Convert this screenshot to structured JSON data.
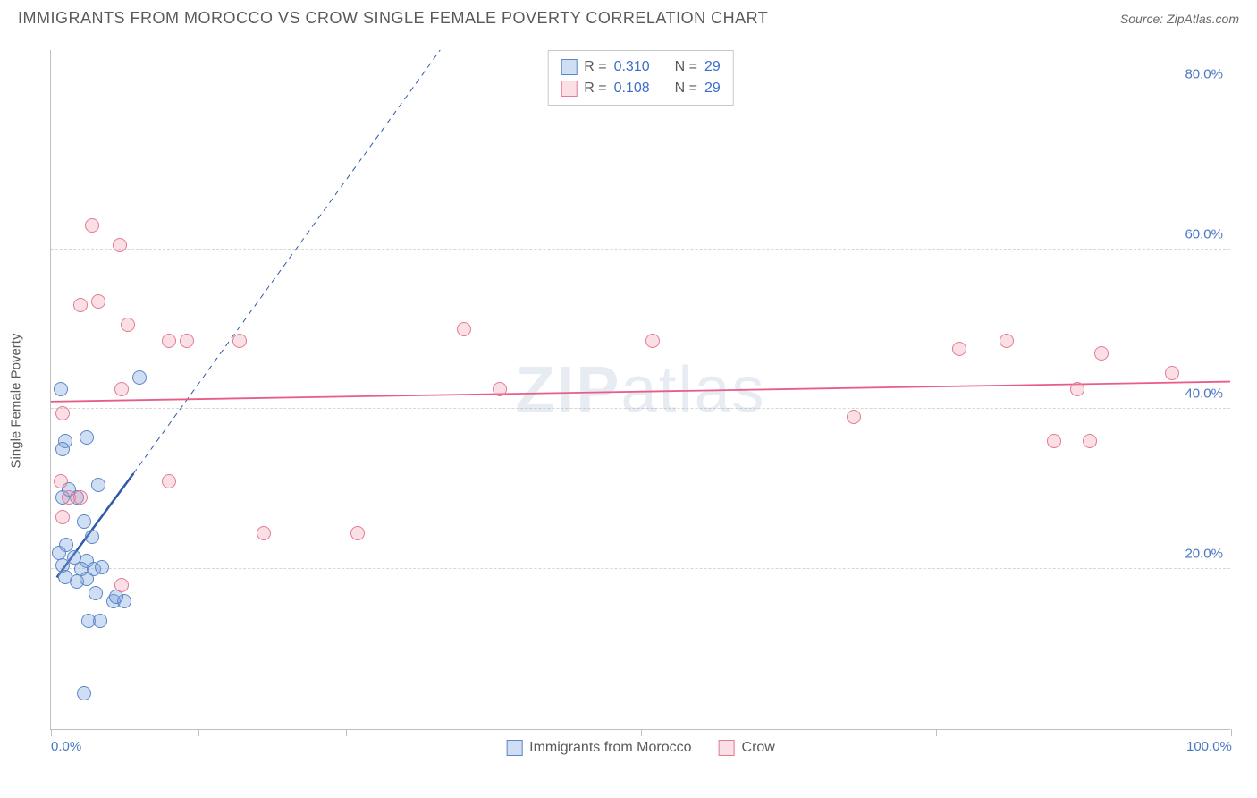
{
  "header": {
    "title": "IMMIGRANTS FROM MOROCCO VS CROW SINGLE FEMALE POVERTY CORRELATION CHART",
    "source": "Source: ZipAtlas.com"
  },
  "ylabel": "Single Female Poverty",
  "watermark": "ZIPatlas",
  "chart": {
    "type": "scatter",
    "xlim": [
      0,
      100
    ],
    "ylim": [
      0,
      85
    ],
    "x_ticks": [
      0,
      12.5,
      25,
      37.5,
      50,
      62.5,
      75,
      87.5,
      100
    ],
    "x_tick_labels": {
      "0": "0.0%",
      "100": "100.0%"
    },
    "y_grid": [
      20,
      40,
      60,
      80
    ],
    "y_tick_labels": {
      "20": "20.0%",
      "40": "40.0%",
      "60": "60.0%",
      "80": "80.0%"
    },
    "background_color": "#ffffff",
    "grid_color": "#d6d6d6",
    "axis_color": "#bfbfbf",
    "tick_label_color": "#4a77c4",
    "label_fontsize": 15,
    "tick_fontsize": 15,
    "marker_radius": 8,
    "marker_stroke_width": 1.5,
    "series": [
      {
        "name": "Immigrants from Morocco",
        "fill": "rgba(120,160,220,0.35)",
        "stroke": "#5b86c7",
        "r_value": "0.310",
        "n_value": "29",
        "trend": {
          "color": "#2e5aa8",
          "solid": {
            "x1": 0.5,
            "y1": 19,
            "x2": 7,
            "y2": 32,
            "width": 2.5
          },
          "dashed": {
            "x1": 7,
            "y1": 32,
            "x2": 33,
            "y2": 85,
            "width": 1,
            "dash": "6 5"
          }
        },
        "points": [
          {
            "x": 0.8,
            "y": 42.5
          },
          {
            "x": 7.5,
            "y": 44
          },
          {
            "x": 1.2,
            "y": 36
          },
          {
            "x": 3.0,
            "y": 36.5
          },
          {
            "x": 1.0,
            "y": 35
          },
          {
            "x": 1.0,
            "y": 29
          },
          {
            "x": 2.2,
            "y": 29
          },
          {
            "x": 1.5,
            "y": 30
          },
          {
            "x": 4.0,
            "y": 30.5
          },
          {
            "x": 2.8,
            "y": 26
          },
          {
            "x": 3.5,
            "y": 24
          },
          {
            "x": 1.3,
            "y": 23
          },
          {
            "x": 0.7,
            "y": 22
          },
          {
            "x": 2.0,
            "y": 21.5
          },
          {
            "x": 3.0,
            "y": 21
          },
          {
            "x": 1.0,
            "y": 20.5
          },
          {
            "x": 2.6,
            "y": 20
          },
          {
            "x": 3.6,
            "y": 20
          },
          {
            "x": 4.3,
            "y": 20.3
          },
          {
            "x": 1.2,
            "y": 19
          },
          {
            "x": 2.2,
            "y": 18.5
          },
          {
            "x": 3.0,
            "y": 18.8
          },
          {
            "x": 3.8,
            "y": 17
          },
          {
            "x": 5.3,
            "y": 16
          },
          {
            "x": 6.2,
            "y": 16
          },
          {
            "x": 3.2,
            "y": 13.5
          },
          {
            "x": 4.2,
            "y": 13.5
          },
          {
            "x": 5.5,
            "y": 16.5
          },
          {
            "x": 2.8,
            "y": 4.5
          }
        ]
      },
      {
        "name": "Crow",
        "fill": "rgba(240,150,170,0.30)",
        "stroke": "#e37a96",
        "r_value": "0.108",
        "n_value": "29",
        "trend": {
          "color": "#e85d88",
          "solid": {
            "x1": 0,
            "y1": 41,
            "x2": 100,
            "y2": 43.5,
            "width": 1.8
          }
        },
        "points": [
          {
            "x": 3.5,
            "y": 63
          },
          {
            "x": 5.8,
            "y": 60.5
          },
          {
            "x": 2.5,
            "y": 53
          },
          {
            "x": 4.0,
            "y": 53.5
          },
          {
            "x": 6.5,
            "y": 50.5
          },
          {
            "x": 10,
            "y": 48.5
          },
          {
            "x": 11.5,
            "y": 48.5
          },
          {
            "x": 16,
            "y": 48.5
          },
          {
            "x": 35,
            "y": 50
          },
          {
            "x": 51,
            "y": 48.5
          },
          {
            "x": 77,
            "y": 47.5
          },
          {
            "x": 81,
            "y": 48.5
          },
          {
            "x": 89,
            "y": 47
          },
          {
            "x": 95,
            "y": 44.5
          },
          {
            "x": 87,
            "y": 42.5
          },
          {
            "x": 68,
            "y": 39
          },
          {
            "x": 85,
            "y": 36
          },
          {
            "x": 88,
            "y": 36
          },
          {
            "x": 38,
            "y": 42.5
          },
          {
            "x": 6.0,
            "y": 42.5
          },
          {
            "x": 1.0,
            "y": 39.5
          },
          {
            "x": 0.8,
            "y": 31
          },
          {
            "x": 1.5,
            "y": 29
          },
          {
            "x": 2.5,
            "y": 29
          },
          {
            "x": 10,
            "y": 31
          },
          {
            "x": 1.0,
            "y": 26.5
          },
          {
            "x": 18,
            "y": 24.5
          },
          {
            "x": 26,
            "y": 24.5
          },
          {
            "x": 6.0,
            "y": 18
          }
        ]
      }
    ]
  },
  "legend_top": {
    "r_label": "R =",
    "n_label": "N ="
  },
  "legend_bottom": {
    "series1_label": "Immigrants from Morocco",
    "series2_label": "Crow"
  }
}
